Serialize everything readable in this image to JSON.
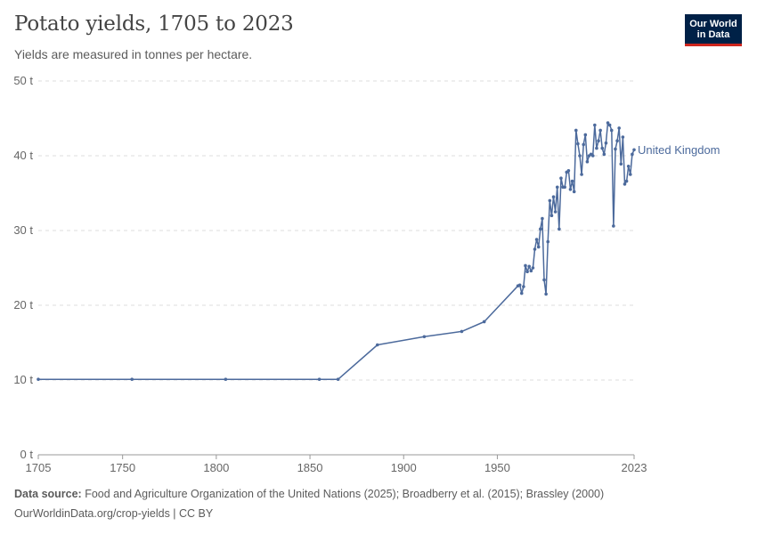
{
  "header": {
    "title": "Potato yields, 1705 to 2023",
    "subtitle": "Yields are measured in tonnes per hectare.",
    "logo_line1": "Our World",
    "logo_line2": "in Data"
  },
  "footer": {
    "source_label": "Data source:",
    "source_text": " Food and Agriculture Organization of the United Nations (2025); Broadberry et al. (2015); Brassley (2000)",
    "url": "OurWorldinData.org/crop-yields | CC BY"
  },
  "colors": {
    "series": "#4c6a9c",
    "grid": "#dddddd",
    "axis": "#999999"
  },
  "chart_data": {
    "type": "line",
    "title": "Potato yields, 1705 to 2023",
    "xlabel": "",
    "ylabel": "",
    "xlim": [
      1705,
      2023
    ],
    "ylim": [
      0,
      50
    ],
    "x_ticks": [
      1705,
      1750,
      1800,
      1850,
      1900,
      1950,
      2023
    ],
    "y_ticks": [
      0,
      10,
      20,
      30,
      40,
      50
    ],
    "y_tick_labels": [
      "0 t",
      "10 t",
      "20 t",
      "30 t",
      "40 t",
      "50 t"
    ],
    "grid": "horizontal",
    "series": [
      {
        "name": "United Kingdom",
        "points": [
          [
            1705,
            10.1
          ],
          [
            1755,
            10.1
          ],
          [
            1805,
            10.1
          ],
          [
            1855,
            10.1
          ],
          [
            1865,
            10.1
          ],
          [
            1886,
            14.7
          ],
          [
            1911,
            15.8
          ],
          [
            1931,
            16.5
          ],
          [
            1943,
            17.8
          ],
          [
            1961,
            22.6
          ],
          [
            1962,
            22.7
          ],
          [
            1963,
            21.6
          ],
          [
            1964,
            22.5
          ],
          [
            1965,
            25.3
          ],
          [
            1966,
            24.5
          ],
          [
            1967,
            25.2
          ],
          [
            1968,
            24.6
          ],
          [
            1969,
            25.0
          ],
          [
            1970,
            27.5
          ],
          [
            1971,
            28.8
          ],
          [
            1972,
            27.8
          ],
          [
            1973,
            30.2
          ],
          [
            1974,
            31.6
          ],
          [
            1975,
            23.4
          ],
          [
            1976,
            21.5
          ],
          [
            1977,
            28.5
          ],
          [
            1978,
            34.0
          ],
          [
            1979,
            32.0
          ],
          [
            1980,
            34.5
          ],
          [
            1981,
            32.5
          ],
          [
            1982,
            35.8
          ],
          [
            1983,
            30.2
          ],
          [
            1984,
            37.0
          ],
          [
            1985,
            35.8
          ],
          [
            1986,
            35.8
          ],
          [
            1987,
            37.8
          ],
          [
            1988,
            38.0
          ],
          [
            1989,
            35.5
          ],
          [
            1990,
            36.6
          ],
          [
            1991,
            35.2
          ],
          [
            1992,
            43.4
          ],
          [
            1993,
            41.6
          ],
          [
            1994,
            40.0
          ],
          [
            1995,
            37.5
          ],
          [
            1996,
            41.5
          ],
          [
            1997,
            42.8
          ],
          [
            1998,
            39.2
          ],
          [
            1999,
            40.0
          ],
          [
            2000,
            40.2
          ],
          [
            2001,
            40.0
          ],
          [
            2002,
            44.1
          ],
          [
            2003,
            41.0
          ],
          [
            2004,
            42.0
          ],
          [
            2005,
            43.4
          ],
          [
            2006,
            41.0
          ],
          [
            2007,
            40.2
          ],
          [
            2008,
            41.7
          ],
          [
            2009,
            44.4
          ],
          [
            2010,
            44.1
          ],
          [
            2011,
            43.4
          ],
          [
            2012,
            30.6
          ],
          [
            2013,
            40.9
          ],
          [
            2014,
            42.0
          ],
          [
            2015,
            43.7
          ],
          [
            2016,
            38.9
          ],
          [
            2017,
            42.5
          ],
          [
            2018,
            36.2
          ],
          [
            2019,
            36.6
          ],
          [
            2020,
            38.6
          ],
          [
            2021,
            37.5
          ],
          [
            2022,
            40.2
          ],
          [
            2023,
            40.8
          ]
        ]
      }
    ]
  }
}
